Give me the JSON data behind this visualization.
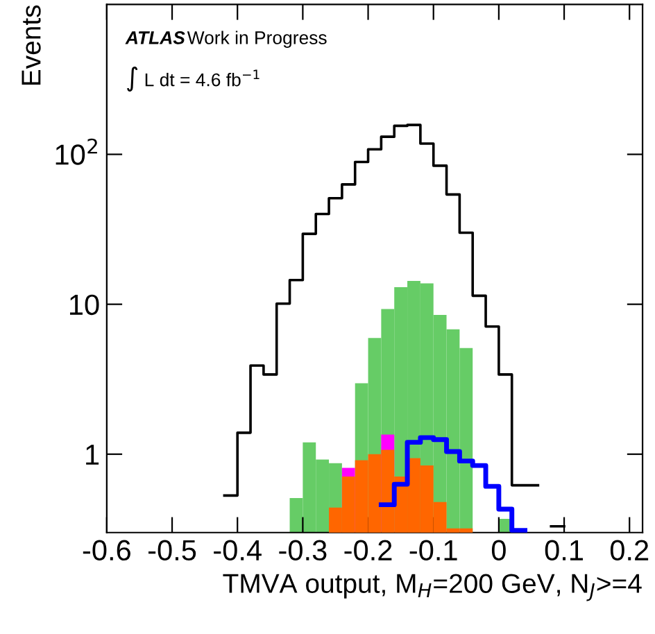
{
  "chart_data": {
    "type": "histogram",
    "xlabel": "TMVA output, M$_{H}$=200 GeV, N$_{J}$>=4",
    "ylabel": "Events",
    "annotations": [
      "ATLAS",
      "Work in Progress",
      "∫ L dt = 4.6 fb$^{−1}$"
    ],
    "bins": [
      -0.6,
      -0.58,
      -0.56,
      -0.54,
      -0.52,
      -0.5,
      -0.48,
      -0.46,
      -0.44,
      -0.42,
      -0.4,
      -0.38,
      -0.36,
      -0.34,
      -0.32,
      -0.3,
      -0.28,
      -0.26,
      -0.24,
      -0.22,
      -0.2,
      -0.18,
      -0.16,
      -0.14,
      -0.12,
      -0.1,
      -0.08,
      -0.06,
      -0.04,
      -0.02,
      0.0,
      0.02,
      0.04,
      0.06,
      0.08,
      0.1,
      0.12,
      0.14,
      0.16,
      0.18,
      0.2,
      0.22
    ],
    "series": [
      {
        "type": "histogram",
        "color": "#66cc66",
        "values": [
          null,
          null,
          null,
          null,
          null,
          null,
          null,
          null,
          null,
          null,
          null,
          null,
          null,
          null,
          0.51,
          1.2,
          0.92,
          0.87,
          null,
          2.97,
          5.96,
          9.3,
          13,
          14.3,
          13.8,
          8.5,
          6.8,
          5.1,
          null,
          null,
          0.37,
          null,
          null,
          null,
          null,
          null,
          null,
          null,
          null,
          null,
          null
        ]
      },
      {
        "type": "histogram",
        "color": "#ff00ff",
        "values": [
          null,
          null,
          null,
          null,
          null,
          null,
          null,
          null,
          null,
          null,
          null,
          null,
          null,
          null,
          null,
          null,
          null,
          null,
          0.81,
          null,
          null,
          1.35,
          null,
          null,
          null,
          null,
          null,
          null,
          null,
          null,
          null,
          null,
          null,
          null,
          null,
          null,
          null,
          null,
          null,
          null,
          null
        ]
      },
      {
        "type": "histogram",
        "color": "#ff6600",
        "values": [
          null,
          null,
          null,
          null,
          null,
          null,
          null,
          null,
          null,
          null,
          null,
          null,
          null,
          null,
          null,
          null,
          null,
          0.44,
          0.71,
          0.91,
          1.0,
          1.07,
          0.71,
          0.94,
          0.84,
          0.48,
          0.32,
          0.32,
          null,
          null,
          null,
          null,
          null,
          null,
          null,
          null,
          null,
          null,
          null,
          null,
          null
        ]
      },
      {
        "type": "step",
        "color": "#0000ff",
        "x": [
          -0.18,
          -0.16,
          -0.14,
          -0.12,
          -0.1,
          -0.08,
          -0.06,
          -0.04,
          -0.02,
          0.0,
          0.02,
          0.04
        ],
        "values": [
          0.46,
          0.63,
          1.2,
          1.29,
          1.25,
          1.04,
          0.9,
          0.84,
          0.61,
          0.43,
          0.31,
          0.31
        ]
      },
      {
        "type": "step",
        "color": "#000000",
        "x": [
          -0.42,
          -0.4,
          -0.38,
          -0.36,
          -0.34,
          -0.32,
          -0.3,
          -0.28,
          -0.26,
          -0.24,
          -0.22,
          -0.2,
          -0.18,
          -0.16,
          -0.14,
          -0.12,
          -0.1,
          -0.08,
          -0.06,
          -0.04,
          -0.02,
          0.0,
          0.02,
          0.04,
          0.06,
          0.08,
          0.1
        ],
        "values": [
          0.53,
          1.39,
          3.9,
          3.4,
          10.1,
          14.5,
          29.5,
          40,
          51,
          63,
          89,
          108,
          131,
          155,
          157,
          118,
          84,
          54,
          30,
          11.4,
          7.1,
          3.4,
          0.62,
          0.62,
          null,
          0.33,
          0.33
        ]
      }
    ],
    "log": "y",
    "xlim": [
      -0.6,
      0.22
    ],
    "xticks": [
      -0.6,
      -0.5,
      -0.4,
      -0.3,
      -0.2,
      -0.1,
      0,
      0.1,
      0.2
    ],
    "ylim": [
      0.3,
      1000
    ],
    "yticks": [
      1,
      10,
      {
        "value": 100,
        "label": "10$^{2}$"
      }
    ]
  }
}
